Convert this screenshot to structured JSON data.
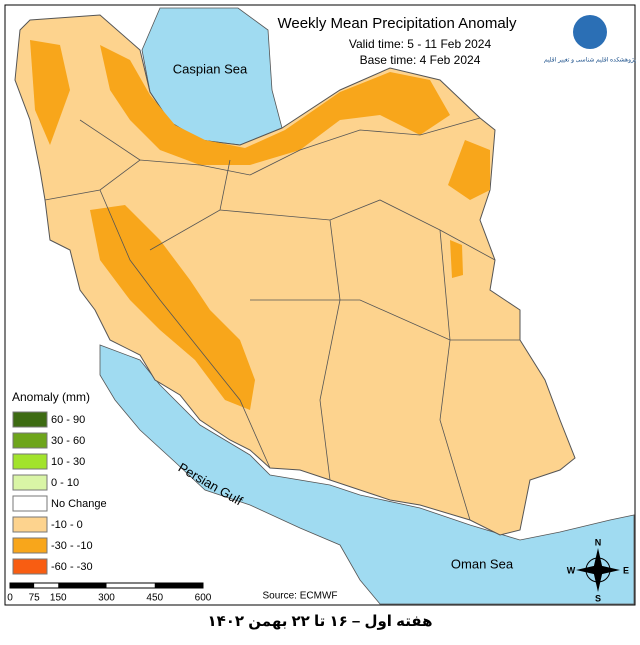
{
  "header": {
    "title": "Weekly Mean Precipitation Anomaly",
    "valid_time": "Valid time:  5 - 11 Feb 2024",
    "base_time": "Base time: 4 Feb 2024",
    "logo_text": "پژوهشکده اقلیم شناسی و تغییر اقلیم"
  },
  "labels": {
    "caspian": "Caspian Sea",
    "gulf": "Persian Gulf",
    "oman": "Oman Sea"
  },
  "legend": {
    "title": "Anomaly (mm)",
    "items": [
      {
        "label": "60 - 90",
        "color": "#3d6b12"
      },
      {
        "label": "30 - 60",
        "color": "#6ea51b"
      },
      {
        "label": "10 - 30",
        "color": "#a2e32c"
      },
      {
        "label": "0 - 10",
        "color": "#d9f5a6"
      },
      {
        "label": "No Change",
        "color": "#ffffff"
      },
      {
        "label": "-10 - 0",
        "color": "#fdd38e"
      },
      {
        "label": "-30 - -10",
        "color": "#f8a61b"
      },
      {
        "label": "-60 - -30",
        "color": "#f85d12"
      }
    ]
  },
  "scale": {
    "labels": [
      0,
      75,
      150,
      300,
      450,
      600
    ]
  },
  "source": "Source: ECMWF",
  "compass": {
    "n": "N",
    "s": "S",
    "e": "E",
    "w": "W"
  },
  "caption": "هفته اول – ۱۶ تا ۲۲ بهمن ۱۴۰۲"
}
